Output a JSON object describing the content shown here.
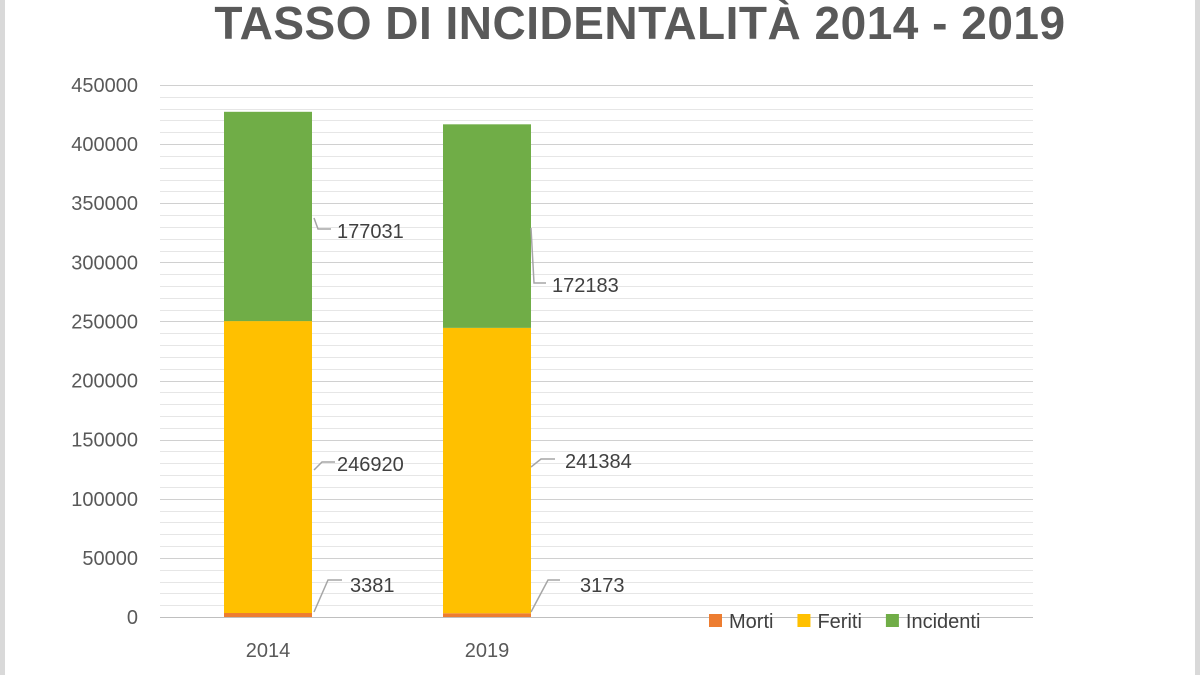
{
  "chart_data": {
    "type": "bar",
    "stacked": true,
    "title": "TASSO DI INCIDENTALITÀ 2014 - 2019",
    "categories": [
      "2014",
      "2019"
    ],
    "series": [
      {
        "name": "Morti",
        "color": "#ED7D31",
        "values": [
          3381,
          3173
        ]
      },
      {
        "name": "Feriti",
        "color": "#FFC000",
        "values": [
          246920,
          241384
        ]
      },
      {
        "name": "Incidenti",
        "color": "#70AD47",
        "values": [
          177031,
          172183
        ]
      }
    ],
    "ylim": [
      0,
      450000
    ],
    "yticks": [
      "0",
      "50000",
      "100000",
      "150000",
      "200000",
      "250000",
      "300000",
      "350000",
      "400000",
      "450000"
    ],
    "grid": true,
    "legend": "bottom-right",
    "data_labels": [
      [
        "3381",
        "246920",
        "177031"
      ],
      [
        "3173",
        "241384",
        "172183"
      ]
    ]
  }
}
